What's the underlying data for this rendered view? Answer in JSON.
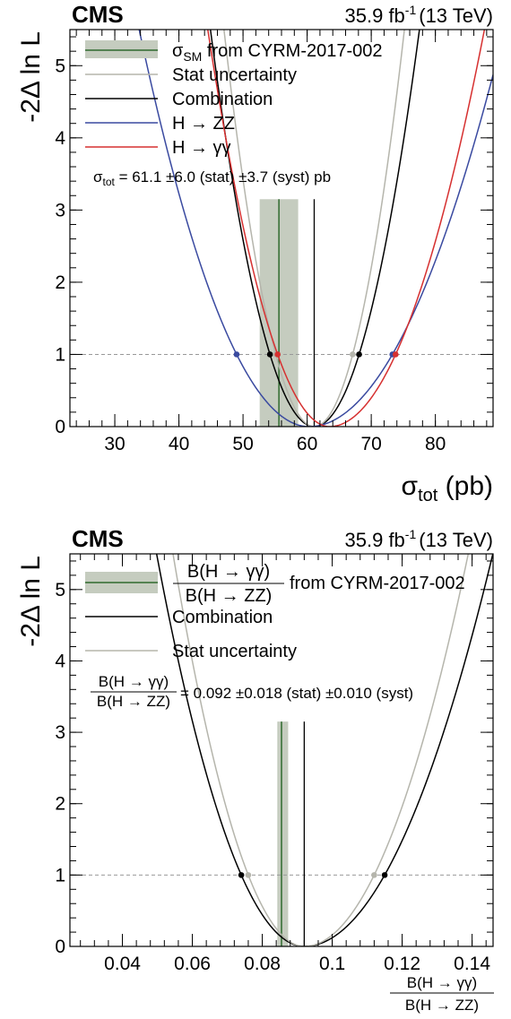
{
  "chart_data": [
    {
      "type": "line",
      "header": {
        "experiment": "CMS",
        "luminosity": "35.9 fb",
        "lumi_exp": "-1",
        "energy": "(13 TeV)"
      },
      "xlabel": "σ",
      "xlabel_sub": "tot",
      "xlabel_unit": "(pb)",
      "ylabel": "-2Δ ln L",
      "xlim": [
        23,
        89
      ],
      "ylim": [
        0,
        5.5
      ],
      "xticks": [
        30,
        40,
        50,
        60,
        70,
        80
      ],
      "yticks": [
        0,
        1,
        2,
        3,
        4,
        5
      ],
      "legend": [
        {
          "kind": "band",
          "text": "σ",
          "sub": "SM",
          "rest": " from CYRM-2017-002",
          "color": "#c5ccbf",
          "line": "#2f6a2f"
        },
        {
          "kind": "line",
          "text": "Stat uncertainty",
          "color": "#b5b5ac"
        },
        {
          "kind": "line",
          "text": "Combination",
          "color": "#000000"
        },
        {
          "kind": "line",
          "text": "H → ZZ",
          "color": "#3a4aa0"
        },
        {
          "kind": "line",
          "text": "H → γγ",
          "color": "#d63030"
        }
      ],
      "result": {
        "sym": "σ",
        "sub": "tot",
        "text": " = 61.1  ±6.0 (stat) ±3.7 (syst)  pb"
      },
      "sm_band": {
        "center": 55.6,
        "low": 52.6,
        "high": 58.6
      },
      "best_fit_line": 61.1,
      "series": [
        {
          "name": "Combination",
          "color": "#000000",
          "min": 61.1,
          "minus": 6.9,
          "plus": 7.0,
          "dots_at_1": [
            54.2,
            68.1
          ]
        },
        {
          "name": "Stat uncertainty",
          "color": "#b5b5ac",
          "min": 61.1,
          "minus": 6.0,
          "plus": 6.0,
          "dots_at_1": [
            55.1,
            67.1
          ]
        },
        {
          "name": "H → ZZ",
          "color": "#3a4aa0",
          "min": 60.3,
          "minus": 11.3,
          "plus": 13.0,
          "dots_at_1": [
            49.0,
            73.3
          ]
        },
        {
          "name": "H → γγ",
          "color": "#d63030",
          "min": 63.5,
          "minus": 8.1,
          "plus": 10.3,
          "dots_at_1": [
            55.4,
            73.8
          ]
        }
      ]
    },
    {
      "type": "line",
      "header": {
        "experiment": "CMS",
        "luminosity": "35.9 fb",
        "lumi_exp": "-1",
        "energy": "(13 TeV)"
      },
      "xlabel_num": "B(H → γγ)",
      "xlabel_den": "B(H → ZZ)",
      "ylabel": "-2Δ ln L",
      "xlim": [
        0.025,
        0.146
      ],
      "ylim": [
        0,
        5.5
      ],
      "xticks": [
        0.04,
        0.06,
        0.08,
        0.1,
        0.12,
        0.14
      ],
      "xtick_labels": [
        "0.04",
        "0.06",
        "0.08",
        "0.1",
        "0.12",
        "0.14"
      ],
      "yticks": [
        0,
        1,
        2,
        3,
        4,
        5
      ],
      "legend": [
        {
          "kind": "band",
          "num": "B(H → γγ)",
          "den": "B(H → ZZ)",
          "rest": "from CYRM-2017-002",
          "color": "#c5ccbf",
          "line": "#2f6a2f"
        },
        {
          "kind": "line",
          "text": "Combination",
          "color": "#000000"
        },
        {
          "kind": "line",
          "text": "Stat uncertainty",
          "color": "#b5b5ac"
        }
      ],
      "result": {
        "num": "B(H → γγ)",
        "den": "B(H → ZZ)",
        "text": "= 0.092  ±0.018 (stat) ±0.010 (syst)"
      },
      "sm_band": {
        "center": 0.0855,
        "low": 0.0843,
        "high": 0.0874
      },
      "best_fit_line": 0.092,
      "series": [
        {
          "name": "Combination",
          "color": "#000000",
          "min": 0.092,
          "minus": 0.018,
          "plus": 0.023,
          "dots_at_1": [
            0.074,
            0.115
          ]
        },
        {
          "name": "Stat uncertainty",
          "color": "#b5b5ac",
          "min": 0.092,
          "minus": 0.016,
          "plus": 0.02,
          "dots_at_1": [
            0.076,
            0.112
          ]
        }
      ]
    }
  ]
}
